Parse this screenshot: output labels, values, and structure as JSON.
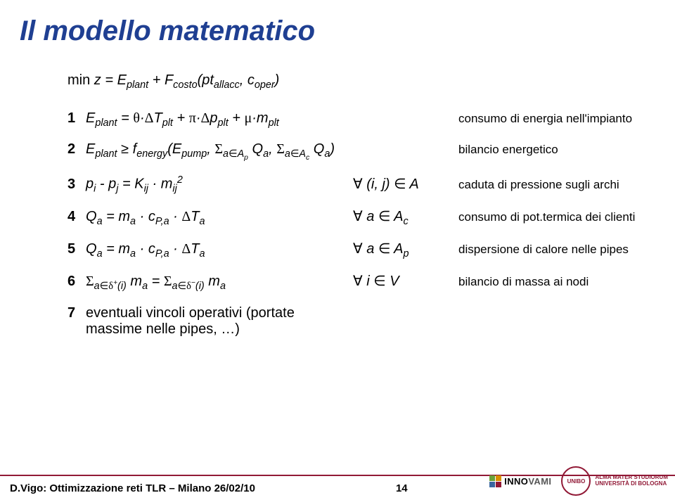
{
  "title": "Il modello matematico",
  "objective": {
    "prefix": "min ",
    "var": "z",
    "eq": " = E",
    "sub1": "plant",
    "plus1": " + F",
    "sub2": "costo",
    "open": "(pt",
    "sub3": "allacc",
    "comma": ", c",
    "sub4": "oper",
    "close": ")"
  },
  "rows": [
    {
      "num": "1",
      "eq_html": "E<sub>plant</sub> = <span class='sym'>θ</span>·<span class='sym'>Δ</span>T<sub>plt</sub> + <span class='sym'>π</span>·<span class='sym'>Δ</span>p<sub>plt</sub> + <span class='sym'>μ</span>·m<sub>plt</sub>",
      "dom": "",
      "desc": "consumo di energia nell'impianto"
    },
    {
      "num": "2",
      "eq_html": "E<sub>plant</sub> ≥ f<sub>energy</sub>(E<sub>pump</sub>, <span class='sym'>Σ</span><sub>a<span class='sym'>∈</span>A<sub>p</sub></sub> Q<sub>a</sub>, <span class='sym'>Σ</span><sub>a<span class='sym'>∈</span>A<sub>c</sub></sub> Q<sub>a</sub>)",
      "dom": "",
      "desc": "bilancio energetico"
    },
    {
      "num": "3",
      "eq_html": "p<sub>i</sub> - p<sub>j</sub> = K<sub>ij</sub> · m<sub>ij</sub><sup>2</sup>",
      "dom_html": "<span class='sym'>∀</span> (i, j) <span class='sym'>∈</span> A",
      "desc": "caduta di pressione sugli archi"
    },
    {
      "num": "4",
      "eq_html": "Q<sub>a</sub> = m<sub>a</sub> · c<sub>P,a</sub> · <span class='sym'>Δ</span>T<sub>a</sub>",
      "dom_html": "<span class='sym'>∀</span> a <span class='sym'>∈</span> A<sub>c</sub>",
      "desc": "consumo di pot.termica dei clienti"
    },
    {
      "num": "5",
      "eq_html": "Q<sub>a</sub> = m<sub>a</sub> · c<sub>P,a</sub> · <span class='sym'>Δ</span>T<sub>a</sub>",
      "dom_html": "<span class='sym'>∀</span> a <span class='sym'>∈</span> A<sub>p</sub>",
      "desc": "dispersione di calore nelle pipes"
    },
    {
      "num": "6",
      "eq_html": "<span class='sym'>Σ</span><sub>a<span class='sym'>∈δ</span><sup>+</sup>(i)</sub> m<sub>a</sub> = <span class='sym'>Σ</span><sub>a<span class='sym'>∈δ</span><sup>−</sup>(i)</sub> m<sub>a</sub>",
      "dom_html": "<span class='sym'>∀</span> i <span class='sym'>∈</span> V",
      "desc": "bilancio  di massa ai nodi"
    },
    {
      "num": "7",
      "eq_html": "<span class='plain'>eventuali vincoli operativi (portate massime nelle pipes, …)</span>",
      "dom": "",
      "desc": ""
    }
  ],
  "footer": {
    "left": "D.Vigo: Ottimizzazione reti TLR – Milano 26/02/10",
    "page": "14",
    "innovami": {
      "inno": "INNO",
      "vami": "VAMI"
    },
    "unibo_line1": "ALMA MATER STUDIORUM",
    "unibo_line2": "UNIVERSITÀ DI BOLOGNA",
    "colors": {
      "sq1": "#6aa23a",
      "sq2": "#d98f00",
      "sq3": "#3a66a0",
      "sq4": "#911936"
    }
  },
  "style": {
    "title_color": "#1f3f92",
    "rule_color": "#911936",
    "bg": "#ffffff",
    "font_size_title": 40,
    "font_size_body": 20,
    "font_size_desc": 17
  }
}
